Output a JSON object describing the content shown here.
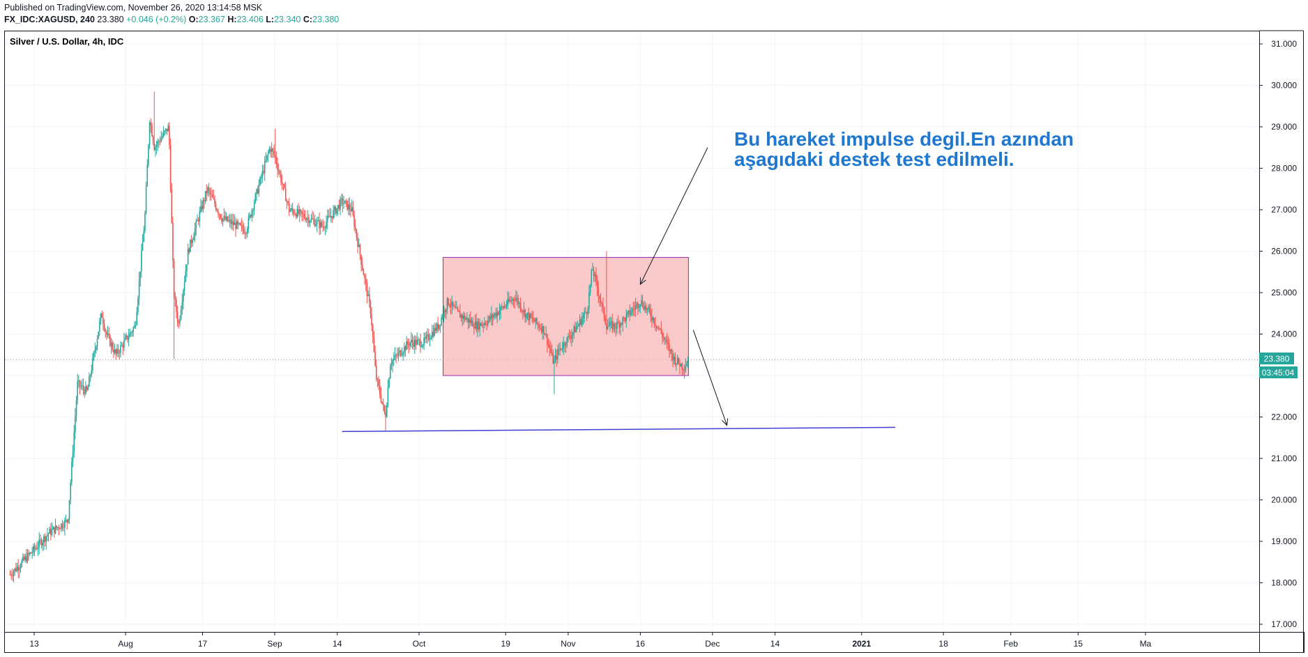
{
  "header": {
    "published": "Published on TradingView.com, November 26, 2020 13:14:58 MSK",
    "symbol": "FX_IDC:XAGUSD, 240",
    "last": "23.380",
    "change": "+0.046 (+0.2%)",
    "o_label": "O:",
    "o_value": "23.367",
    "h_label": "H:",
    "h_value": "23.406",
    "l_label": "L:",
    "l_value": "23.340",
    "c_label": "C:",
    "c_value": "23.380"
  },
  "legend": "Silver / U.S. Dollar, 4h, IDC",
  "price_badge": "23.380",
  "countdown_badge": "03:45:04",
  "annotation": {
    "line1": "Bu hareket impulse degil.En azından",
    "line2": "aşagıdaki destek test edilmeli."
  },
  "colors": {
    "up": "#26a69a",
    "down": "#ef5350",
    "box_fill": "#f8b7b8",
    "box_stroke": "#9c27b0",
    "support_line": "#3f3fd6",
    "annotation_text": "#1e77d0",
    "price_line": "#26a69a"
  },
  "chart_data": {
    "type": "candlestick",
    "title": "Silver / U.S. Dollar, 4h, IDC",
    "xlabel": "",
    "ylabel": "",
    "x_ticks": [
      "13",
      "Aug",
      "17",
      "Sep",
      "14",
      "Oct",
      "19",
      "Nov",
      "16",
      "Dec",
      "14",
      "2021",
      "18",
      "Feb",
      "15",
      "Ma"
    ],
    "y_ticks": [
      "17.000",
      "18.000",
      "19.000",
      "20.000",
      "21.000",
      "22.000",
      "23.000",
      "24.000",
      "25.000",
      "26.000",
      "27.000",
      "28.000",
      "29.000",
      "30.000",
      "31.000"
    ],
    "ylim": [
      16.8,
      31.2
    ],
    "grid": true,
    "last_price": 23.38,
    "close_path": [
      [
        "2020-07-08",
        18.2
      ],
      [
        "2020-07-13",
        18.8
      ],
      [
        "2020-07-16",
        19.2
      ],
      [
        "2020-07-20",
        19.5
      ],
      [
        "2020-07-22",
        22.8
      ],
      [
        "2020-07-24",
        22.6
      ],
      [
        "2020-07-27",
        24.5
      ],
      [
        "2020-07-28",
        24.0
      ],
      [
        "2020-07-30",
        23.5
      ],
      [
        "2020-08-03",
        24.2
      ],
      [
        "2020-08-05",
        26.8
      ],
      [
        "2020-08-06",
        29.2
      ],
      [
        "2020-08-07",
        28.5
      ],
      [
        "2020-08-10",
        29.0
      ],
      [
        "2020-08-11",
        25.0
      ],
      [
        "2020-08-12",
        24.2
      ],
      [
        "2020-08-14",
        26.0
      ],
      [
        "2020-08-18",
        27.5
      ],
      [
        "2020-08-21",
        26.8
      ],
      [
        "2020-08-26",
        26.5
      ],
      [
        "2020-08-31",
        28.5
      ],
      [
        "2020-09-01",
        28.3
      ],
      [
        "2020-09-04",
        27.0
      ],
      [
        "2020-09-08",
        26.8
      ],
      [
        "2020-09-11",
        26.6
      ],
      [
        "2020-09-15",
        27.2
      ],
      [
        "2020-09-17",
        27.0
      ],
      [
        "2020-09-21",
        24.5
      ],
      [
        "2020-09-22",
        23.0
      ],
      [
        "2020-09-24",
        22.0
      ],
      [
        "2020-09-25",
        23.3
      ],
      [
        "2020-09-29",
        23.8
      ],
      [
        "2020-10-02",
        23.8
      ],
      [
        "2020-10-05",
        24.2
      ],
      [
        "2020-10-07",
        24.8
      ],
      [
        "2020-10-09",
        24.5
      ],
      [
        "2020-10-13",
        24.2
      ],
      [
        "2020-10-15",
        24.3
      ],
      [
        "2020-10-19",
        24.7
      ],
      [
        "2020-10-21",
        24.9
      ],
      [
        "2020-10-23",
        24.5
      ],
      [
        "2020-10-27",
        24.1
      ],
      [
        "2020-10-29",
        23.3
      ],
      [
        "2020-10-30",
        23.6
      ],
      [
        "2020-11-03",
        24.2
      ],
      [
        "2020-11-05",
        24.6
      ],
      [
        "2020-11-06",
        25.6
      ],
      [
        "2020-11-09",
        24.2
      ],
      [
        "2020-11-11",
        24.2
      ],
      [
        "2020-11-13",
        24.4
      ],
      [
        "2020-11-16",
        24.8
      ],
      [
        "2020-11-18",
        24.5
      ],
      [
        "2020-11-20",
        24.1
      ],
      [
        "2020-11-23",
        23.4
      ],
      [
        "2020-11-25",
        23.2
      ],
      [
        "2020-11-26",
        23.38
      ]
    ],
    "extremes": [
      [
        "2020-08-07",
        29.85
      ],
      [
        "2020-08-11",
        23.4
      ],
      [
        "2020-09-01",
        28.95
      ],
      [
        "2020-09-24",
        21.65
      ],
      [
        "2020-11-09",
        26.0
      ],
      [
        "2020-10-29",
        22.55
      ]
    ],
    "range_box": {
      "x_start": "2020-10-06",
      "x_end": "2020-11-26",
      "y_low": 23.0,
      "y_high": 25.85
    },
    "support_line": {
      "x1": "2020-09-15",
      "y1": 21.65,
      "x2": "2021-01-08",
      "y2": 21.75
    },
    "arrows": [
      {
        "from_x": "2020-11-30",
        "from_y": 28.5,
        "to_x": "2020-11-16",
        "to_y": 25.2
      },
      {
        "from_x": "2020-11-27",
        "from_y": 24.1,
        "to_x": "2020-12-04",
        "to_y": 21.8
      }
    ]
  }
}
